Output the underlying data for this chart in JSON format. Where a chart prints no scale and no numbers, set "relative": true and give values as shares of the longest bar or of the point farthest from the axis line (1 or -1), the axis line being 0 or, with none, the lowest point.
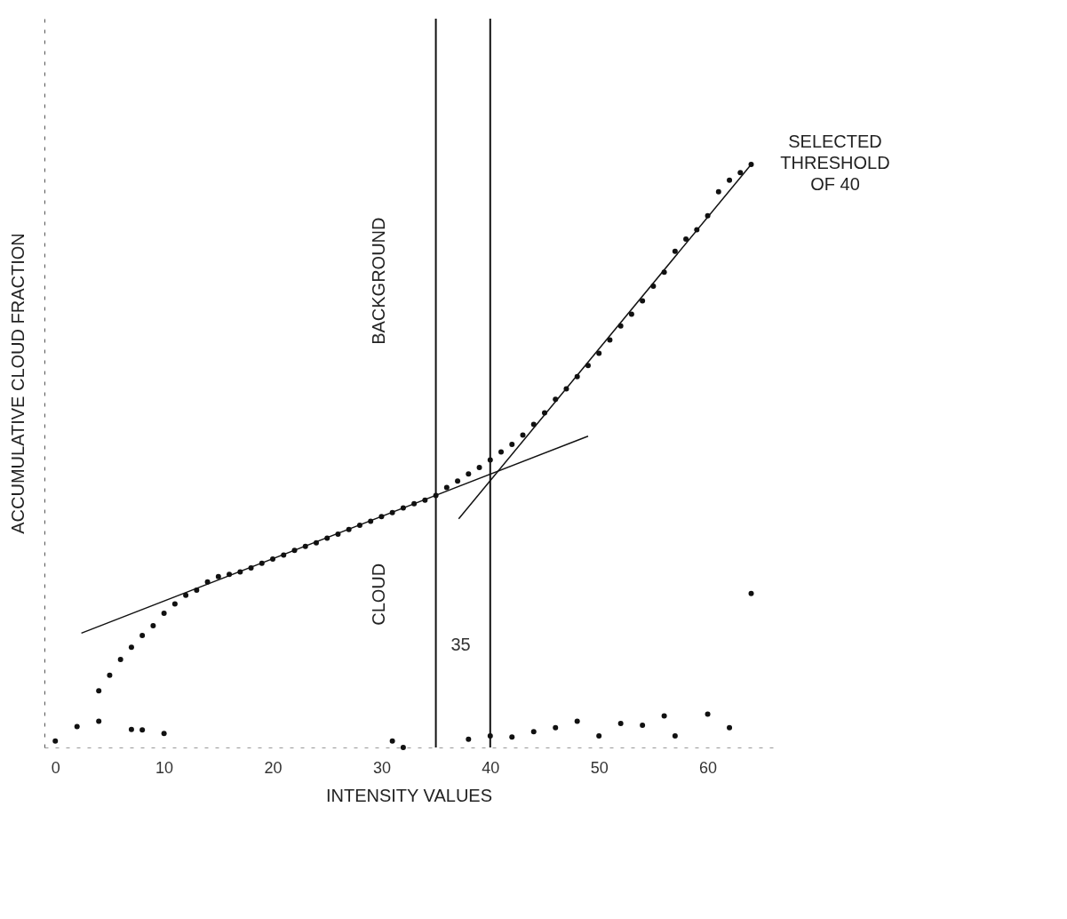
{
  "chart_data": {
    "type": "scatter",
    "xlabel": "INTENSITY VALUES",
    "ylabel": "ACCUMULATIVE CLOUD FRACTION",
    "relative": true,
    "xlim": [
      -1,
      66
    ],
    "xticks": [
      0,
      10,
      20,
      30,
      40,
      50,
      60
    ],
    "grid": false,
    "marker": "circle",
    "series": [
      {
        "color": "#111111",
        "x": [
          4,
          5,
          6,
          7,
          8,
          9,
          10,
          11,
          12,
          13,
          14,
          15,
          16,
          17,
          18,
          19,
          20,
          21,
          22,
          23,
          24,
          25,
          26,
          27,
          28,
          29,
          30,
          31,
          32,
          33,
          34,
          35,
          36,
          37,
          38,
          39,
          40,
          41,
          42,
          43,
          44,
          45,
          46,
          47,
          48,
          49,
          50,
          51,
          52,
          53,
          54,
          55,
          56,
          57,
          58,
          59,
          60,
          61,
          62,
          63,
          64
        ],
        "values": [
          0.097,
          0.124,
          0.151,
          0.172,
          0.192,
          0.209,
          0.23,
          0.246,
          0.261,
          0.27,
          0.284,
          0.293,
          0.297,
          0.301,
          0.308,
          0.316,
          0.323,
          0.33,
          0.338,
          0.345,
          0.351,
          0.359,
          0.366,
          0.374,
          0.381,
          0.388,
          0.396,
          0.403,
          0.411,
          0.418,
          0.424,
          0.432,
          0.446,
          0.457,
          0.469,
          0.48,
          0.493,
          0.507,
          0.52,
          0.536,
          0.554,
          0.574,
          0.597,
          0.615,
          0.636,
          0.655,
          0.676,
          0.699,
          0.723,
          0.743,
          0.766,
          0.791,
          0.815,
          0.851,
          0.872,
          0.888,
          0.912,
          0.953,
          0.973,
          0.986,
          1.0
        ]
      },
      {
        "color": "#111111",
        "x": [
          0,
          2,
          4,
          7,
          8,
          10,
          31,
          32,
          38,
          40,
          42,
          44,
          46,
          48,
          50,
          52,
          54,
          56,
          57,
          60,
          62,
          64
        ],
        "values": [
          0.011,
          0.036,
          0.045,
          0.031,
          0.03,
          0.024,
          0.011,
          0.0,
          0.014,
          0.02,
          0.018,
          0.027,
          0.034,
          0.045,
          0.02,
          0.041,
          0.038,
          0.054,
          0.02,
          0.057,
          0.034,
          0.264
        ]
      },
      {
        "type": "line",
        "marker": "none",
        "color": "#111111",
        "x": [
          2.4,
          49
        ],
        "values": [
          0.196,
          0.534
        ]
      },
      {
        "type": "line",
        "marker": "none",
        "color": "#111111",
        "x": [
          37.1,
          64
        ],
        "values": [
          0.392,
          1.0
        ]
      }
    ],
    "ref_lines": [
      {
        "axis": "x",
        "value": 35,
        "label": "35",
        "color": "#111111"
      },
      {
        "axis": "x",
        "value": 40,
        "color": "#111111"
      }
    ],
    "annotations": [
      "CLOUD",
      "BACKGROUND",
      "SELECTED THRESHOLD OF 40"
    ]
  }
}
